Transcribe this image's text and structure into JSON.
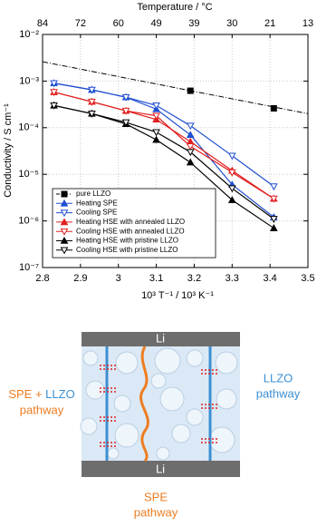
{
  "chart_data": {
    "type": "line",
    "ylog": true,
    "grid": true,
    "xlabel": "10³ T⁻¹ / 10³ K⁻¹",
    "ylabel": "Conductivity / S cm⁻¹",
    "x2label": "Temperature / °C",
    "xlim": [
      2.8,
      3.5
    ],
    "xticks": [
      2.8,
      2.9,
      3.0,
      3.1,
      3.2,
      3.3,
      3.4,
      3.5
    ],
    "x2ticks": [
      {
        "value": 2.8,
        "label": "84"
      },
      {
        "value": 2.9,
        "label": "72"
      },
      {
        "value": 3.0,
        "label": "60"
      },
      {
        "value": 3.1,
        "label": "49"
      },
      {
        "value": 3.2,
        "label": "39"
      },
      {
        "value": 3.3,
        "label": "30"
      },
      {
        "value": 3.4,
        "label": "21"
      },
      {
        "value": 3.5,
        "label": "13"
      }
    ],
    "ylim": [
      1e-07,
      0.01
    ],
    "yticks": [
      {
        "value": 1e-07,
        "label": "10⁻⁷"
      },
      {
        "value": 1e-06,
        "label": "10⁻⁶"
      },
      {
        "value": 1e-05,
        "label": "10⁻⁵"
      },
      {
        "value": 0.0001,
        "label": "10⁻⁴"
      },
      {
        "value": 0.001,
        "label": "10⁻³"
      },
      {
        "value": 0.01,
        "label": "10⁻²"
      }
    ],
    "legend": "lower left",
    "series": [
      {
        "name": "pure LLZO",
        "color": "#000000",
        "marker": "square",
        "filled": true,
        "line": false,
        "x": [
          3.19,
          3.41
        ],
        "values": [
          0.00062,
          0.00026
        ],
        "fit": {
          "x": [
            2.8,
            3.5
          ],
          "values": [
            0.0026,
            0.0002
          ]
        }
      },
      {
        "name": "Heating SPE",
        "color": "#1f4fd1",
        "marker": "up",
        "filled": true,
        "line": true,
        "x": [
          2.83,
          2.93,
          3.02,
          3.1,
          3.19,
          3.3,
          3.41
        ],
        "values": [
          0.0009,
          0.00065,
          0.00045,
          0.00025,
          7e-05,
          6e-06,
          1.2e-06
        ]
      },
      {
        "name": "Cooling SPE",
        "color": "#1f4fd1",
        "marker": "down",
        "filled": false,
        "line": true,
        "x": [
          2.83,
          2.93,
          3.02,
          3.1,
          3.19,
          3.3,
          3.41
        ],
        "values": [
          0.0009,
          0.00065,
          0.00045,
          0.0003,
          0.00011,
          2.5e-05,
          5.5e-06
        ]
      },
      {
        "name": "Heating HSE with annealed LLZO",
        "color": "#e02020",
        "marker": "up",
        "filled": true,
        "line": true,
        "x": [
          2.83,
          2.93,
          3.02,
          3.1,
          3.19,
          3.3,
          3.41
        ],
        "values": [
          0.00058,
          0.00036,
          0.00023,
          0.00015,
          5e-05,
          1.2e-05,
          3e-06
        ]
      },
      {
        "name": "Cooling HSE with annealed LLZO",
        "color": "#e02020",
        "marker": "down",
        "filled": false,
        "line": true,
        "x": [
          2.83,
          2.93,
          3.02,
          3.1,
          3.19,
          3.3,
          3.41
        ],
        "values": [
          0.00058,
          0.00036,
          0.00023,
          0.00018,
          4e-05,
          1.1e-05,
          3e-06
        ]
      },
      {
        "name": "Heating HSE with pristine LLZO",
        "color": "#000000",
        "marker": "up",
        "filled": true,
        "line": true,
        "x": [
          2.83,
          2.93,
          3.02,
          3.1,
          3.19,
          3.3,
          3.41
        ],
        "values": [
          0.0003,
          0.0002,
          0.00012,
          5.5e-05,
          1.8e-05,
          2.8e-06,
          7e-07
        ]
      },
      {
        "name": "Cooling HSE with pristine LLZO",
        "color": "#000000",
        "marker": "down",
        "filled": false,
        "line": true,
        "x": [
          2.83,
          2.93,
          3.02,
          3.1,
          3.19,
          3.3,
          3.41
        ],
        "values": [
          0.0003,
          0.0002,
          0.00013,
          8e-05,
          3e-05,
          5e-06,
          1.1e-06
        ]
      }
    ]
  },
  "diagram": {
    "top_electrode": "Li",
    "bottom_electrode": "Li",
    "left_label": {
      "spe": "SPE",
      "plus": "+",
      "llzo": "LLZO",
      "pathway": "pathway"
    },
    "right_label": [
      "LLZO",
      "pathway"
    ],
    "bottom_label": [
      "SPE",
      "pathway"
    ]
  }
}
